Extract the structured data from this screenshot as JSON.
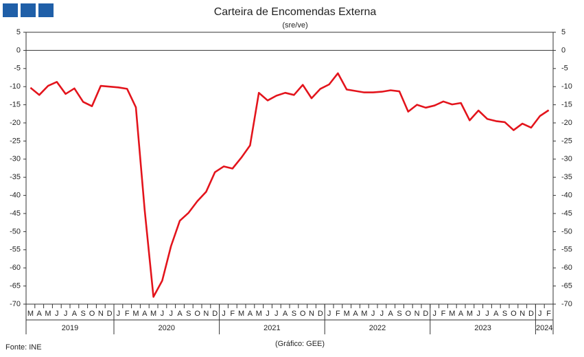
{
  "chart_data": {
    "type": "line",
    "title": "Carteira de Encomendas Externa",
    "subtitle": "(sre/ve)",
    "source": "Fonte: INE",
    "credit": "(Gráfico: GEE)",
    "groups": [
      {
        "label": "2019",
        "categories": [
          "M",
          "A",
          "M",
          "J",
          "J",
          "A",
          "S",
          "O",
          "N",
          "D"
        ]
      },
      {
        "label": "2020",
        "categories": [
          "J",
          "F",
          "M",
          "A",
          "M",
          "J",
          "J",
          "A",
          "S",
          "O",
          "N",
          "D"
        ]
      },
      {
        "label": "2021",
        "categories": [
          "J",
          "F",
          "M",
          "A",
          "M",
          "J",
          "J",
          "A",
          "S",
          "O",
          "N",
          "D"
        ]
      },
      {
        "label": "2022",
        "categories": [
          "J",
          "F",
          "M",
          "A",
          "M",
          "J",
          "J",
          "A",
          "S",
          "O",
          "N",
          "D"
        ]
      },
      {
        "label": "2023",
        "categories": [
          "J",
          "F",
          "M",
          "A",
          "M",
          "J",
          "J",
          "A",
          "S",
          "O",
          "N",
          "D"
        ]
      },
      {
        "label": "2024",
        "categories": [
          "J",
          "F"
        ]
      }
    ],
    "color": "#e3141c",
    "values": [
      -10.3,
      -12.3,
      -9.8,
      -8.7,
      -12,
      -10.5,
      -14.2,
      -15.4,
      -9.8,
      -10.0,
      -10.2,
      -10.6,
      -15.7,
      -44,
      -68,
      -63.5,
      -54,
      -47,
      -44.8,
      -41.6,
      -39,
      -33.6,
      -32,
      -32.6,
      -29.6,
      -26.2,
      -11.7,
      -13.8,
      -12.5,
      -11.7,
      -12.3,
      -9.5,
      -13.2,
      -10.6,
      -9.4,
      -6.3,
      -10.8,
      -11.2,
      -11.6,
      -11.6,
      -11.4,
      -11.0,
      -11.3,
      -16.9,
      -15.0,
      -15.8,
      -15.2,
      -14.1,
      -14.9,
      -14.5,
      -19.3,
      -16.6,
      -18.9,
      -19.5,
      -19.8,
      -22,
      -20.2,
      -21.3,
      -18.1,
      -16.5
    ],
    "ylim": [
      -70,
      5
    ],
    "yticks": [
      5,
      0,
      -5,
      -10,
      -15,
      -20,
      -25,
      -30,
      -35,
      -40,
      -45,
      -50,
      -55,
      -60,
      -65,
      -70
    ]
  }
}
